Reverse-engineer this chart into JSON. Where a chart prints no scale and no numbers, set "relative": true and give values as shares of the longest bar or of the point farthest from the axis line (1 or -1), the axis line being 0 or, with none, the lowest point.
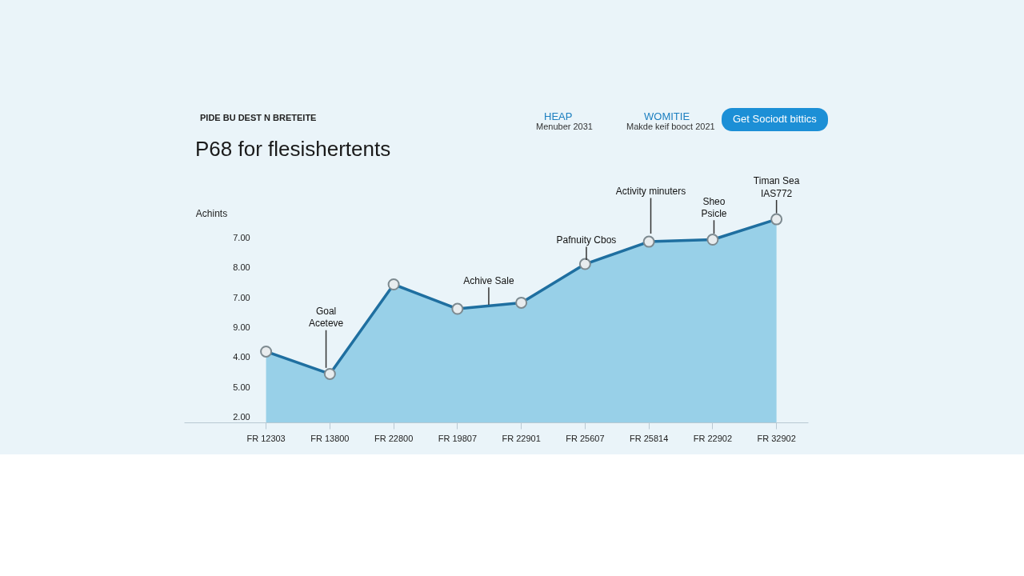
{
  "chart_data": {
    "type": "area",
    "title": "P68 for flesishertents",
    "subtitle": "PIDE BU DEST N BRETEITE",
    "ylabel": "Achints",
    "relative": true,
    "categories": [
      "FR 12303",
      "FR 13800",
      "FR 22800",
      "FR 19807",
      "FR 22901",
      "FR 25607",
      "FR 25814",
      "FR 22902",
      "FR 32902"
    ],
    "series": [
      {
        "color": "#1f6fa0",
        "values": [
          0.35,
          0.24,
          0.68,
          0.56,
          0.59,
          0.78,
          0.89,
          0.9,
          1.0
        ]
      }
    ],
    "marker": "circle",
    "annotations": [
      "HEAP",
      "Menuber 2031",
      "WOMITIE",
      "Makde keif booct 2021",
      "Get Sociodt bittics",
      "7.00",
      "8.00",
      "7.00",
      "9.00",
      "4.00",
      "5.00",
      "2.00",
      "Goal\nAceteve",
      "Achive Sale",
      "Pafnuity Cbos",
      "Activity minuters",
      "Sheo\nPsicle",
      "Timan Sea\nIAS772"
    ]
  }
}
